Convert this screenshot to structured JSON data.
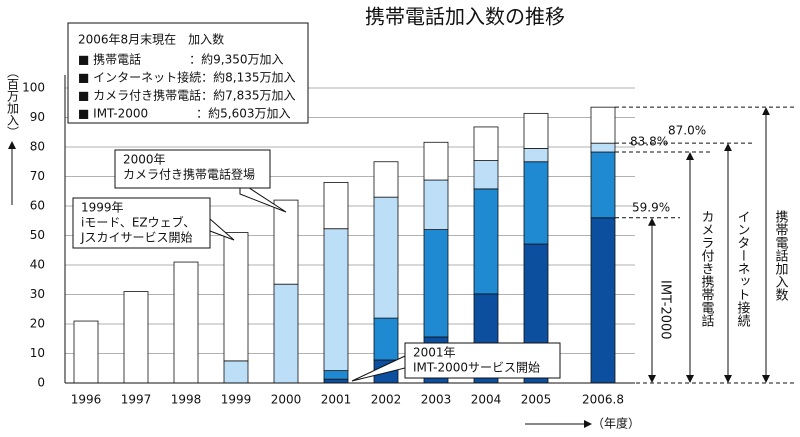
{
  "chart_data": {
    "type": "stacked_bar",
    "title": "携帯電話加入数の推移",
    "y_label": "（百万加入）",
    "x_label": "（年度）",
    "categories": [
      "1996",
      "1997",
      "1998",
      "1999",
      "2000",
      "2001",
      "2002",
      "2003",
      "2004",
      "2005",
      "2006.8"
    ],
    "series": [
      {
        "name": "IMT-2000",
        "color": "#0b4f9e",
        "values": [
          null,
          null,
          null,
          null,
          null,
          1.3,
          7.8,
          15.6,
          30.2,
          47.1,
          56.0
        ]
      },
      {
        "name": "カメラ付き携帯電話",
        "color": "#1f8ad2",
        "values": [
          null,
          null,
          null,
          null,
          null,
          2.9,
          14.2,
          36.4,
          35.6,
          27.9,
          22.3
        ]
      },
      {
        "name": "インターネット接続",
        "color": "#bcdff7",
        "values": [
          null,
          null,
          null,
          7.5,
          33.5,
          48.1,
          41.0,
          16.8,
          9.6,
          4.5,
          3.0
        ]
      },
      {
        "name": "携帯電話加入数",
        "color": "#ffffff",
        "values": [
          21,
          31,
          41,
          43.5,
          28.5,
          15.7,
          12.0,
          12.8,
          11.4,
          11.9,
          12.2
        ]
      }
    ],
    "ylim": [
      0,
      100
    ],
    "yticks": [
      0,
      10,
      20,
      30,
      40,
      50,
      60,
      70,
      80,
      90,
      100
    ],
    "grid": true,
    "legend_box": {
      "heading": "2006年8月末現在　加入数",
      "lines": [
        "■ 携帯電話　　　　：約9,350万加入",
        "■ インターネット接続：約8,135万加入",
        "■ カメラ付き携帯電話：約7,835万加入",
        "■ IMT-2000　　　　：約5,603万加入"
      ]
    },
    "percent_labels": [
      "59.9%",
      "83.8%",
      "87.0%"
    ],
    "callouts": [
      {
        "lines": [
          "2000年",
          "カメラ付き携帯電話登場"
        ]
      },
      {
        "lines": [
          "1999年",
          "iモード、EZウェブ、",
          "Jスカイサービス開始"
        ]
      },
      {
        "lines": [
          "2001年",
          "IMT-2000サービス開始"
        ]
      }
    ]
  }
}
